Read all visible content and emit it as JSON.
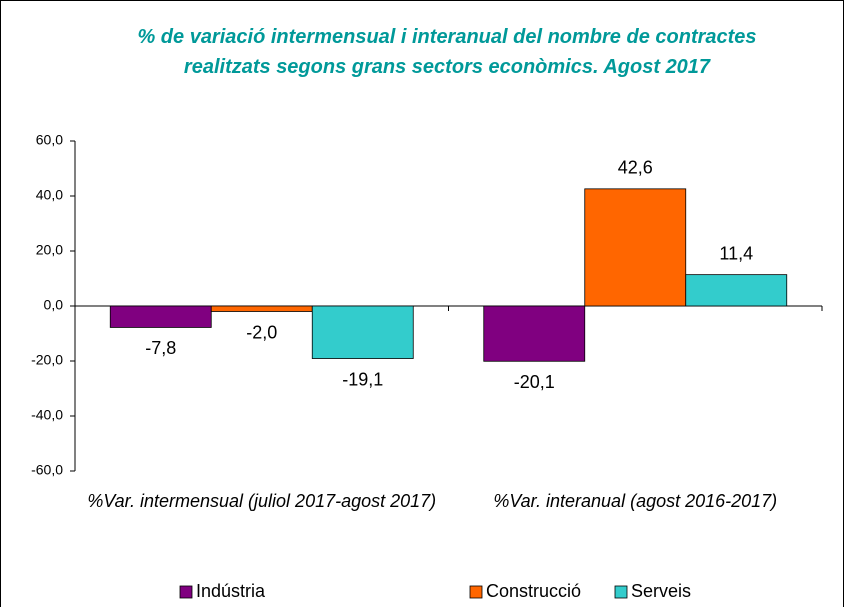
{
  "chart_data": {
    "type": "bar",
    "title": "% de variació intermensual i interanual del nombre de contractes realitzats segons grans sectors econòmics. Agost 2017",
    "categories": [
      "%Var. intermensual (juliol 2017-agost 2017)",
      "%Var. interanual (agost 2016-2017)"
    ],
    "series": [
      {
        "name": "Indústria",
        "color": "#800080",
        "values": [
          -7.8,
          -20.1
        ],
        "value_labels": [
          "-7,8",
          "-20,1"
        ]
      },
      {
        "name": "Construcció",
        "color": "#ff6600",
        "values": [
          -2.0,
          42.6
        ],
        "value_labels": [
          "-2,0",
          "42,6"
        ]
      },
      {
        "name": "Serveis",
        "color": "#33cccc",
        "values": [
          -19.1,
          11.4
        ],
        "value_labels": [
          "-19,1",
          "11,4"
        ]
      }
    ],
    "ylim": [
      -60,
      60
    ],
    "yticks": [
      {
        "value": -60,
        "label": "-60,0"
      },
      {
        "value": -40,
        "label": "-40,0"
      },
      {
        "value": -20,
        "label": "-20,0"
      },
      {
        "value": 0,
        "label": "0,0"
      },
      {
        "value": 20,
        "label": "20,0"
      },
      {
        "value": 40,
        "label": "40,0"
      },
      {
        "value": 60,
        "label": "60,0"
      }
    ],
    "legend": "bottom"
  }
}
